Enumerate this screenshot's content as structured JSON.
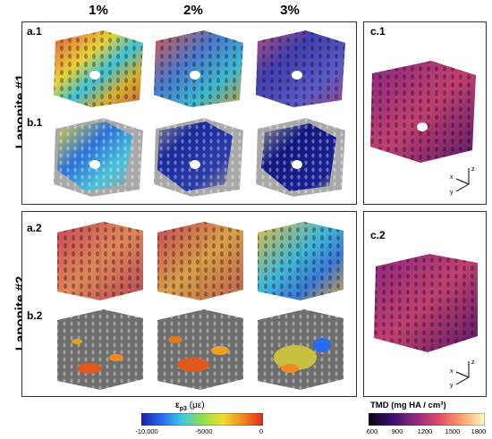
{
  "columns": [
    "1%",
    "2%",
    "3%"
  ],
  "rows": [
    "Laponite #1",
    "Laponite #2"
  ],
  "panels": {
    "a1": "a.1",
    "b1": "b.1",
    "c1": "c.1",
    "a2": "a.2",
    "b2": "b.2",
    "c2": "c.2"
  },
  "axes": {
    "x": "x",
    "y": "y",
    "z": "z"
  },
  "strain_bar": {
    "title_main": "ε",
    "title_sub": "p3",
    "title_unit": " (με)",
    "ticks": [
      "-10,000",
      "-5000",
      "0"
    ],
    "colors": [
      "#1e1ea8",
      "#2a6cf0",
      "#3fc6e8",
      "#8ce04a",
      "#f0e030",
      "#f08a20",
      "#e02a1a"
    ]
  },
  "tmd_bar": {
    "title": "TMD (mg HA / cm³)",
    "ticks": [
      "600",
      "900",
      "1200",
      "1500",
      "1800"
    ],
    "colors": [
      "#0a0414",
      "#3b0f6e",
      "#8c2981",
      "#de4968",
      "#fe9f6d",
      "#fcfdbf"
    ]
  }
}
